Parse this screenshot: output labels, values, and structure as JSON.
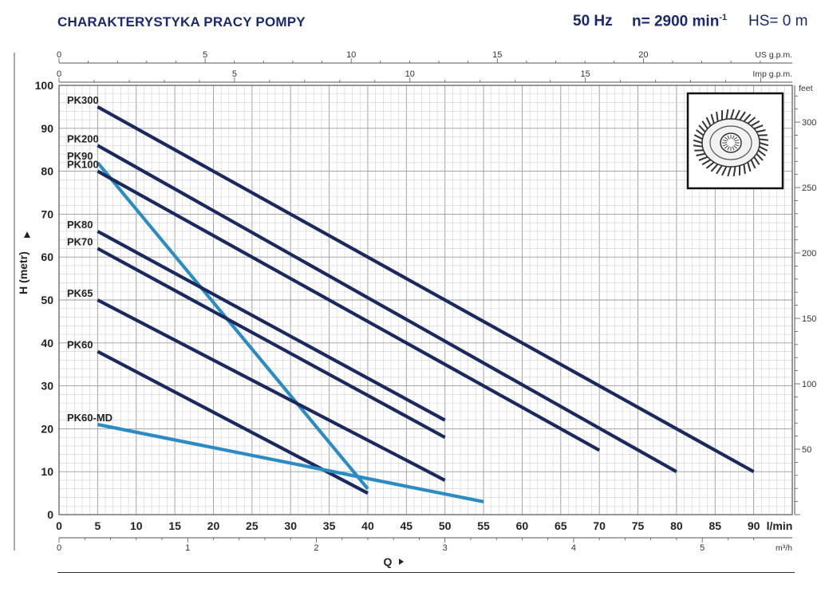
{
  "header": {
    "title": "CHARAKTERYSTYKA PRACY POMPY",
    "frequency": "50 Hz",
    "speed": "n= 2900 min",
    "speed_exp": "-1",
    "hs": "HS= 0 m"
  },
  "chart_data": {
    "type": "line",
    "ylabel": "H (metr)",
    "xlabel": "Q",
    "x_unit": "l/min",
    "xlim": [
      0,
      95
    ],
    "ylim": [
      0,
      100
    ],
    "x_ticks": [
      0,
      5,
      10,
      15,
      20,
      25,
      30,
      35,
      40,
      45,
      50,
      55,
      60,
      65,
      70,
      75,
      80,
      85,
      90
    ],
    "y_ticks": [
      0,
      10,
      20,
      30,
      40,
      50,
      60,
      70,
      80,
      90,
      100
    ],
    "top_axis_us": {
      "unit": "US g.p.m.",
      "ticks": [
        0,
        5,
        10,
        15,
        20
      ]
    },
    "top_axis_imp": {
      "unit": "Imp g.p.m.",
      "ticks": [
        0,
        5,
        10,
        15
      ]
    },
    "bottom_axis_m3h": {
      "unit": "m³/h",
      "ticks": [
        0,
        1,
        2,
        3,
        4,
        5
      ]
    },
    "right_axis_feet": {
      "unit": "feet",
      "ticks": [
        50,
        100,
        150,
        200,
        250,
        300
      ]
    },
    "series": [
      {
        "name": "PK300",
        "color": "#1a2a5e",
        "x": [
          5,
          90
        ],
        "y": [
          95,
          10
        ]
      },
      {
        "name": "PK200",
        "color": "#1a2a5e",
        "x": [
          5,
          80
        ],
        "y": [
          86,
          10
        ]
      },
      {
        "name": "PK90",
        "color": "#2b8cc4",
        "x": [
          5,
          40
        ],
        "y": [
          82,
          6
        ]
      },
      {
        "name": "PK100",
        "color": "#1a2a5e",
        "x": [
          5,
          70
        ],
        "y": [
          80,
          15
        ]
      },
      {
        "name": "PK80",
        "color": "#1a2a5e",
        "x": [
          5,
          50
        ],
        "y": [
          66,
          22
        ]
      },
      {
        "name": "PK70",
        "color": "#1a2a5e",
        "x": [
          5,
          50
        ],
        "y": [
          62,
          18
        ]
      },
      {
        "name": "PK65",
        "color": "#1a2a5e",
        "x": [
          5,
          50
        ],
        "y": [
          50,
          8
        ]
      },
      {
        "name": "PK60",
        "color": "#1a2a5e",
        "x": [
          5,
          40
        ],
        "y": [
          38,
          5
        ]
      },
      {
        "name": "PK60-MD",
        "color": "#2b8cc4",
        "x": [
          5,
          55
        ],
        "y": [
          21,
          3
        ]
      }
    ]
  }
}
